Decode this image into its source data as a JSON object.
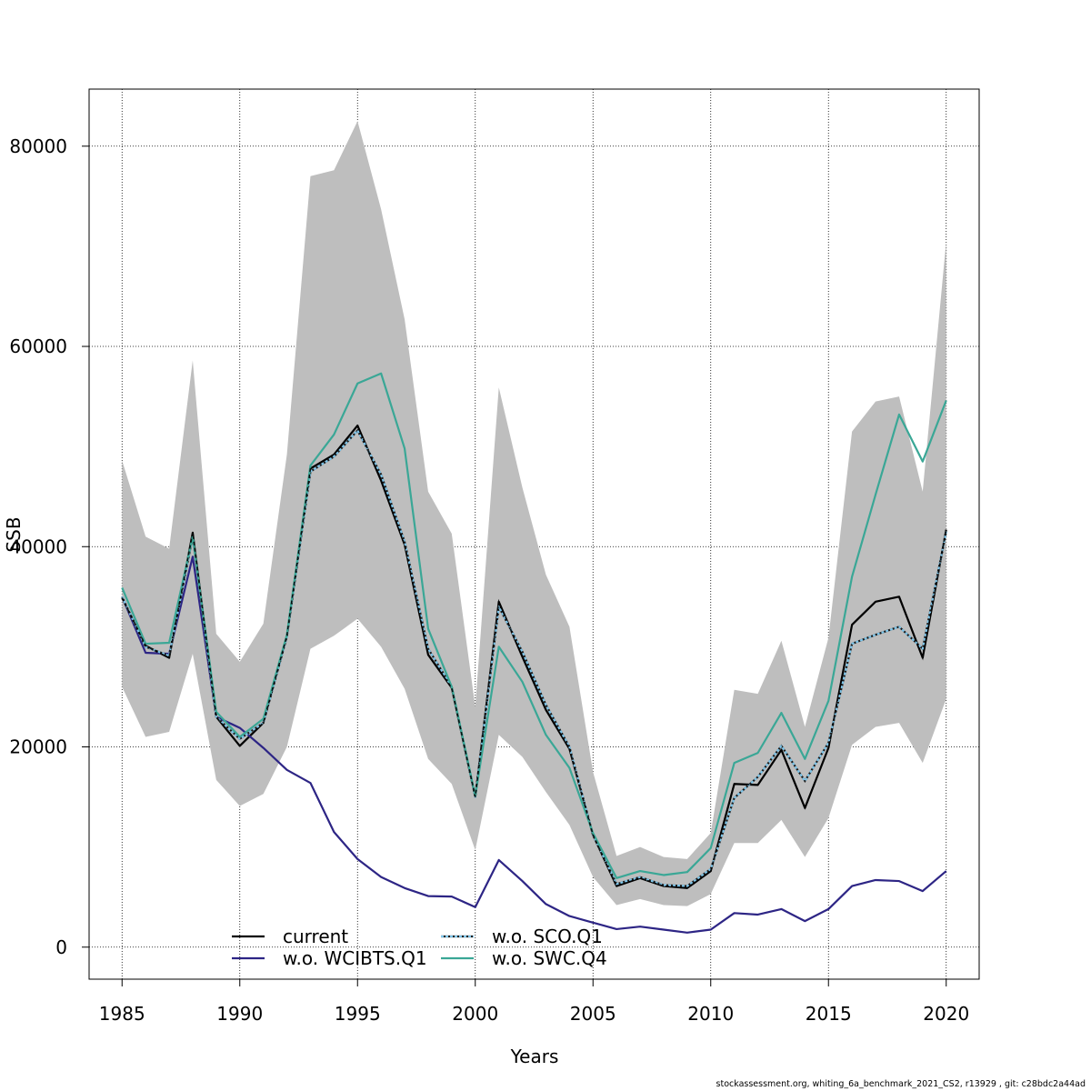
{
  "footer": "stockassessment.org, whiting_6a_benchmark_2021_CS2, r13929 , git: c28bdc2a44ad",
  "chart_data": {
    "type": "line",
    "xlabel": "Years",
    "ylabel": "SSB",
    "xlim": [
      1983.6,
      2021.4
    ],
    "ylim": [
      -3200,
      85700
    ],
    "grid": true,
    "legend_position": "bottom",
    "x_ticks": [
      1985,
      1990,
      1995,
      2000,
      2005,
      2010,
      2015,
      2020
    ],
    "y_ticks": [
      0,
      20000,
      40000,
      60000,
      80000
    ],
    "x": [
      1985,
      1986,
      1987,
      1988,
      1989,
      1990,
      1991,
      1992,
      1993,
      1994,
      1995,
      1996,
      1997,
      1998,
      1999,
      2000,
      2001,
      2002,
      2003,
      2004,
      2005,
      2006,
      2007,
      2008,
      2009,
      2010,
      2011,
      2012,
      2013,
      2014,
      2015,
      2016,
      2017,
      2018,
      2019,
      2020
    ],
    "confidence_band": {
      "color": "#bebebe",
      "lower": [
        26000,
        21000,
        21500,
        29300,
        16700,
        14100,
        15300,
        20000,
        29800,
        31100,
        32800,
        30000,
        25800,
        18800,
        16300,
        9700,
        21200,
        19000,
        15500,
        12200,
        7000,
        4200,
        4800,
        4200,
        4100,
        5300,
        10400,
        10400,
        12700,
        9000,
        12900,
        20200,
        22000,
        22400,
        18400,
        24800
      ],
      "upper": [
        48600,
        41000,
        39800,
        58600,
        31300,
        28500,
        32300,
        49200,
        77000,
        77600,
        82500,
        73700,
        62700,
        45500,
        41300,
        24000,
        55900,
        45900,
        37200,
        32000,
        17500,
        9100,
        10000,
        9000,
        8800,
        11400,
        25700,
        25300,
        30600,
        22000,
        30900,
        51500,
        54500,
        55000,
        45500,
        70500
      ]
    },
    "series": [
      {
        "name": "current",
        "color": "#000000",
        "dash": "none",
        "values": [
          34900,
          30100,
          28900,
          41400,
          23000,
          20100,
          22400,
          31100,
          47800,
          49200,
          52100,
          46600,
          40200,
          29200,
          25900,
          15000,
          34500,
          29000,
          23700,
          19800,
          11200,
          6100,
          6900,
          6100,
          5900,
          7600,
          16300,
          16200,
          19700,
          13900,
          19900,
          32200,
          34500,
          35000,
          28900,
          41700
        ]
      },
      {
        "name": "w.o. WCIBTS.Q1",
        "color": "#2d2585",
        "dash": "none",
        "values": [
          35000,
          29400,
          29300,
          39000,
          23000,
          21900,
          19900,
          17700,
          16400,
          11500,
          8800,
          7000,
          5900,
          5100,
          5050,
          4000,
          8700,
          6600,
          4300,
          3100,
          2450,
          1800,
          2050,
          1750,
          1450,
          1750,
          3400,
          3250,
          3800,
          2600,
          3800,
          6100,
          6700,
          6600,
          5600,
          7600
        ]
      },
      {
        "name": "w.o. SCO.Q1",
        "color": "#7fc6ea",
        "dash": "3,2",
        "values": [
          35000,
          30000,
          29100,
          41000,
          23000,
          20800,
          22400,
          31000,
          47500,
          49000,
          51600,
          47200,
          40500,
          29800,
          26000,
          15000,
          34000,
          29500,
          24200,
          20000,
          11200,
          6300,
          7000,
          6200,
          6100,
          7800,
          14900,
          17000,
          20100,
          16600,
          20400,
          30300,
          31200,
          32000,
          29800,
          41500
        ]
      },
      {
        "name": "w.o. SWC.Q4",
        "color": "#3aa796",
        "dash": "none",
        "values": [
          35900,
          30300,
          30400,
          41000,
          23500,
          21000,
          22800,
          31200,
          48100,
          51200,
          56300,
          57300,
          49800,
          31800,
          26000,
          15100,
          30000,
          26500,
          21200,
          17900,
          11400,
          6900,
          7600,
          7200,
          7500,
          9900,
          18400,
          19400,
          23400,
          18800,
          24600,
          37000,
          45200,
          53200,
          48500,
          54600
        ]
      }
    ]
  }
}
